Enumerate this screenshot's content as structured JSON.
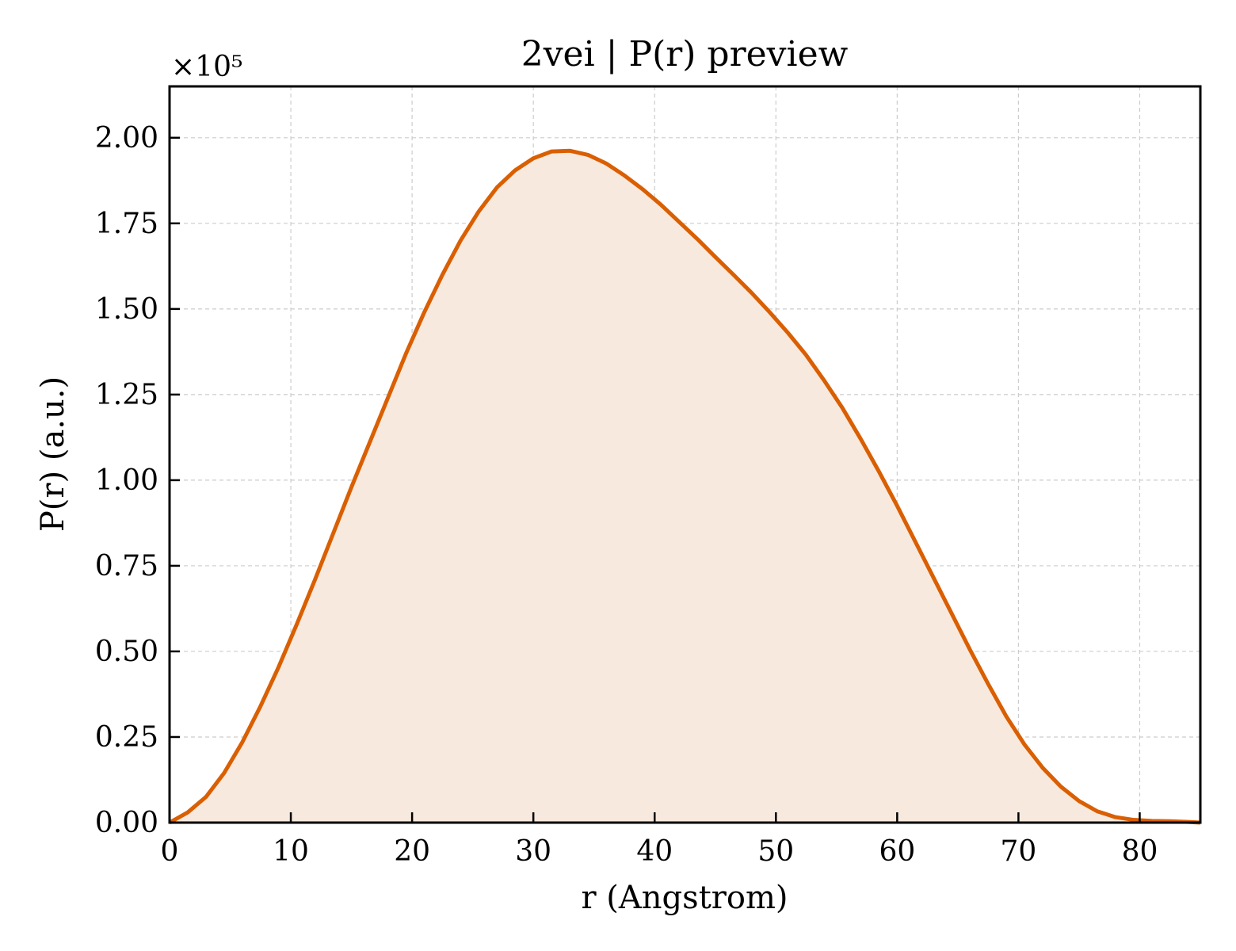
{
  "chart_data": {
    "type": "area",
    "title": "2vei | P(r) preview",
    "xlabel": "r (Angstrom)",
    "ylabel": "P(r) (a.u.)",
    "y_offset_label": "×10⁵",
    "xlim": [
      0,
      85
    ],
    "ylim": [
      0,
      2.15
    ],
    "xticks": [
      "0",
      "10",
      "20",
      "30",
      "40",
      "50",
      "60",
      "70",
      "80"
    ],
    "yticks": [
      "0.00",
      "0.25",
      "0.50",
      "0.75",
      "1.00",
      "1.25",
      "1.50",
      "1.75",
      "2.00"
    ],
    "grid": true,
    "line_color": "#d95f02",
    "fill_color": "#f8e9de",
    "series": [
      {
        "x": [
          0,
          1.5,
          3,
          4.5,
          6,
          7.5,
          9,
          10.5,
          12,
          13.5,
          15,
          16.5,
          18,
          19.5,
          21,
          22.5,
          24,
          25.5,
          27,
          28.5,
          30,
          31.5,
          33,
          34.5,
          36,
          37.5,
          39,
          40.5,
          42,
          43.5,
          45,
          46.5,
          48,
          49.5,
          51,
          52.5,
          54,
          55.5,
          57,
          58.5,
          60,
          61.5,
          63,
          64.5,
          66,
          67.5,
          69,
          70.5,
          72,
          73.5,
          75,
          76.5,
          78,
          79.5,
          81,
          82.5,
          84,
          85
        ],
        "y": [
          0.0,
          0.03,
          0.075,
          0.145,
          0.235,
          0.34,
          0.455,
          0.58,
          0.71,
          0.845,
          0.98,
          1.11,
          1.24,
          1.37,
          1.49,
          1.6,
          1.7,
          1.785,
          1.855,
          1.905,
          1.94,
          1.96,
          1.962,
          1.95,
          1.925,
          1.89,
          1.85,
          1.805,
          1.755,
          1.705,
          1.652,
          1.6,
          1.547,
          1.49,
          1.43,
          1.365,
          1.29,
          1.21,
          1.12,
          1.025,
          0.925,
          0.82,
          0.715,
          0.61,
          0.505,
          0.405,
          0.31,
          0.228,
          0.16,
          0.105,
          0.063,
          0.033,
          0.016,
          0.008,
          0.005,
          0.004,
          0.002,
          0.0
        ]
      }
    ]
  }
}
